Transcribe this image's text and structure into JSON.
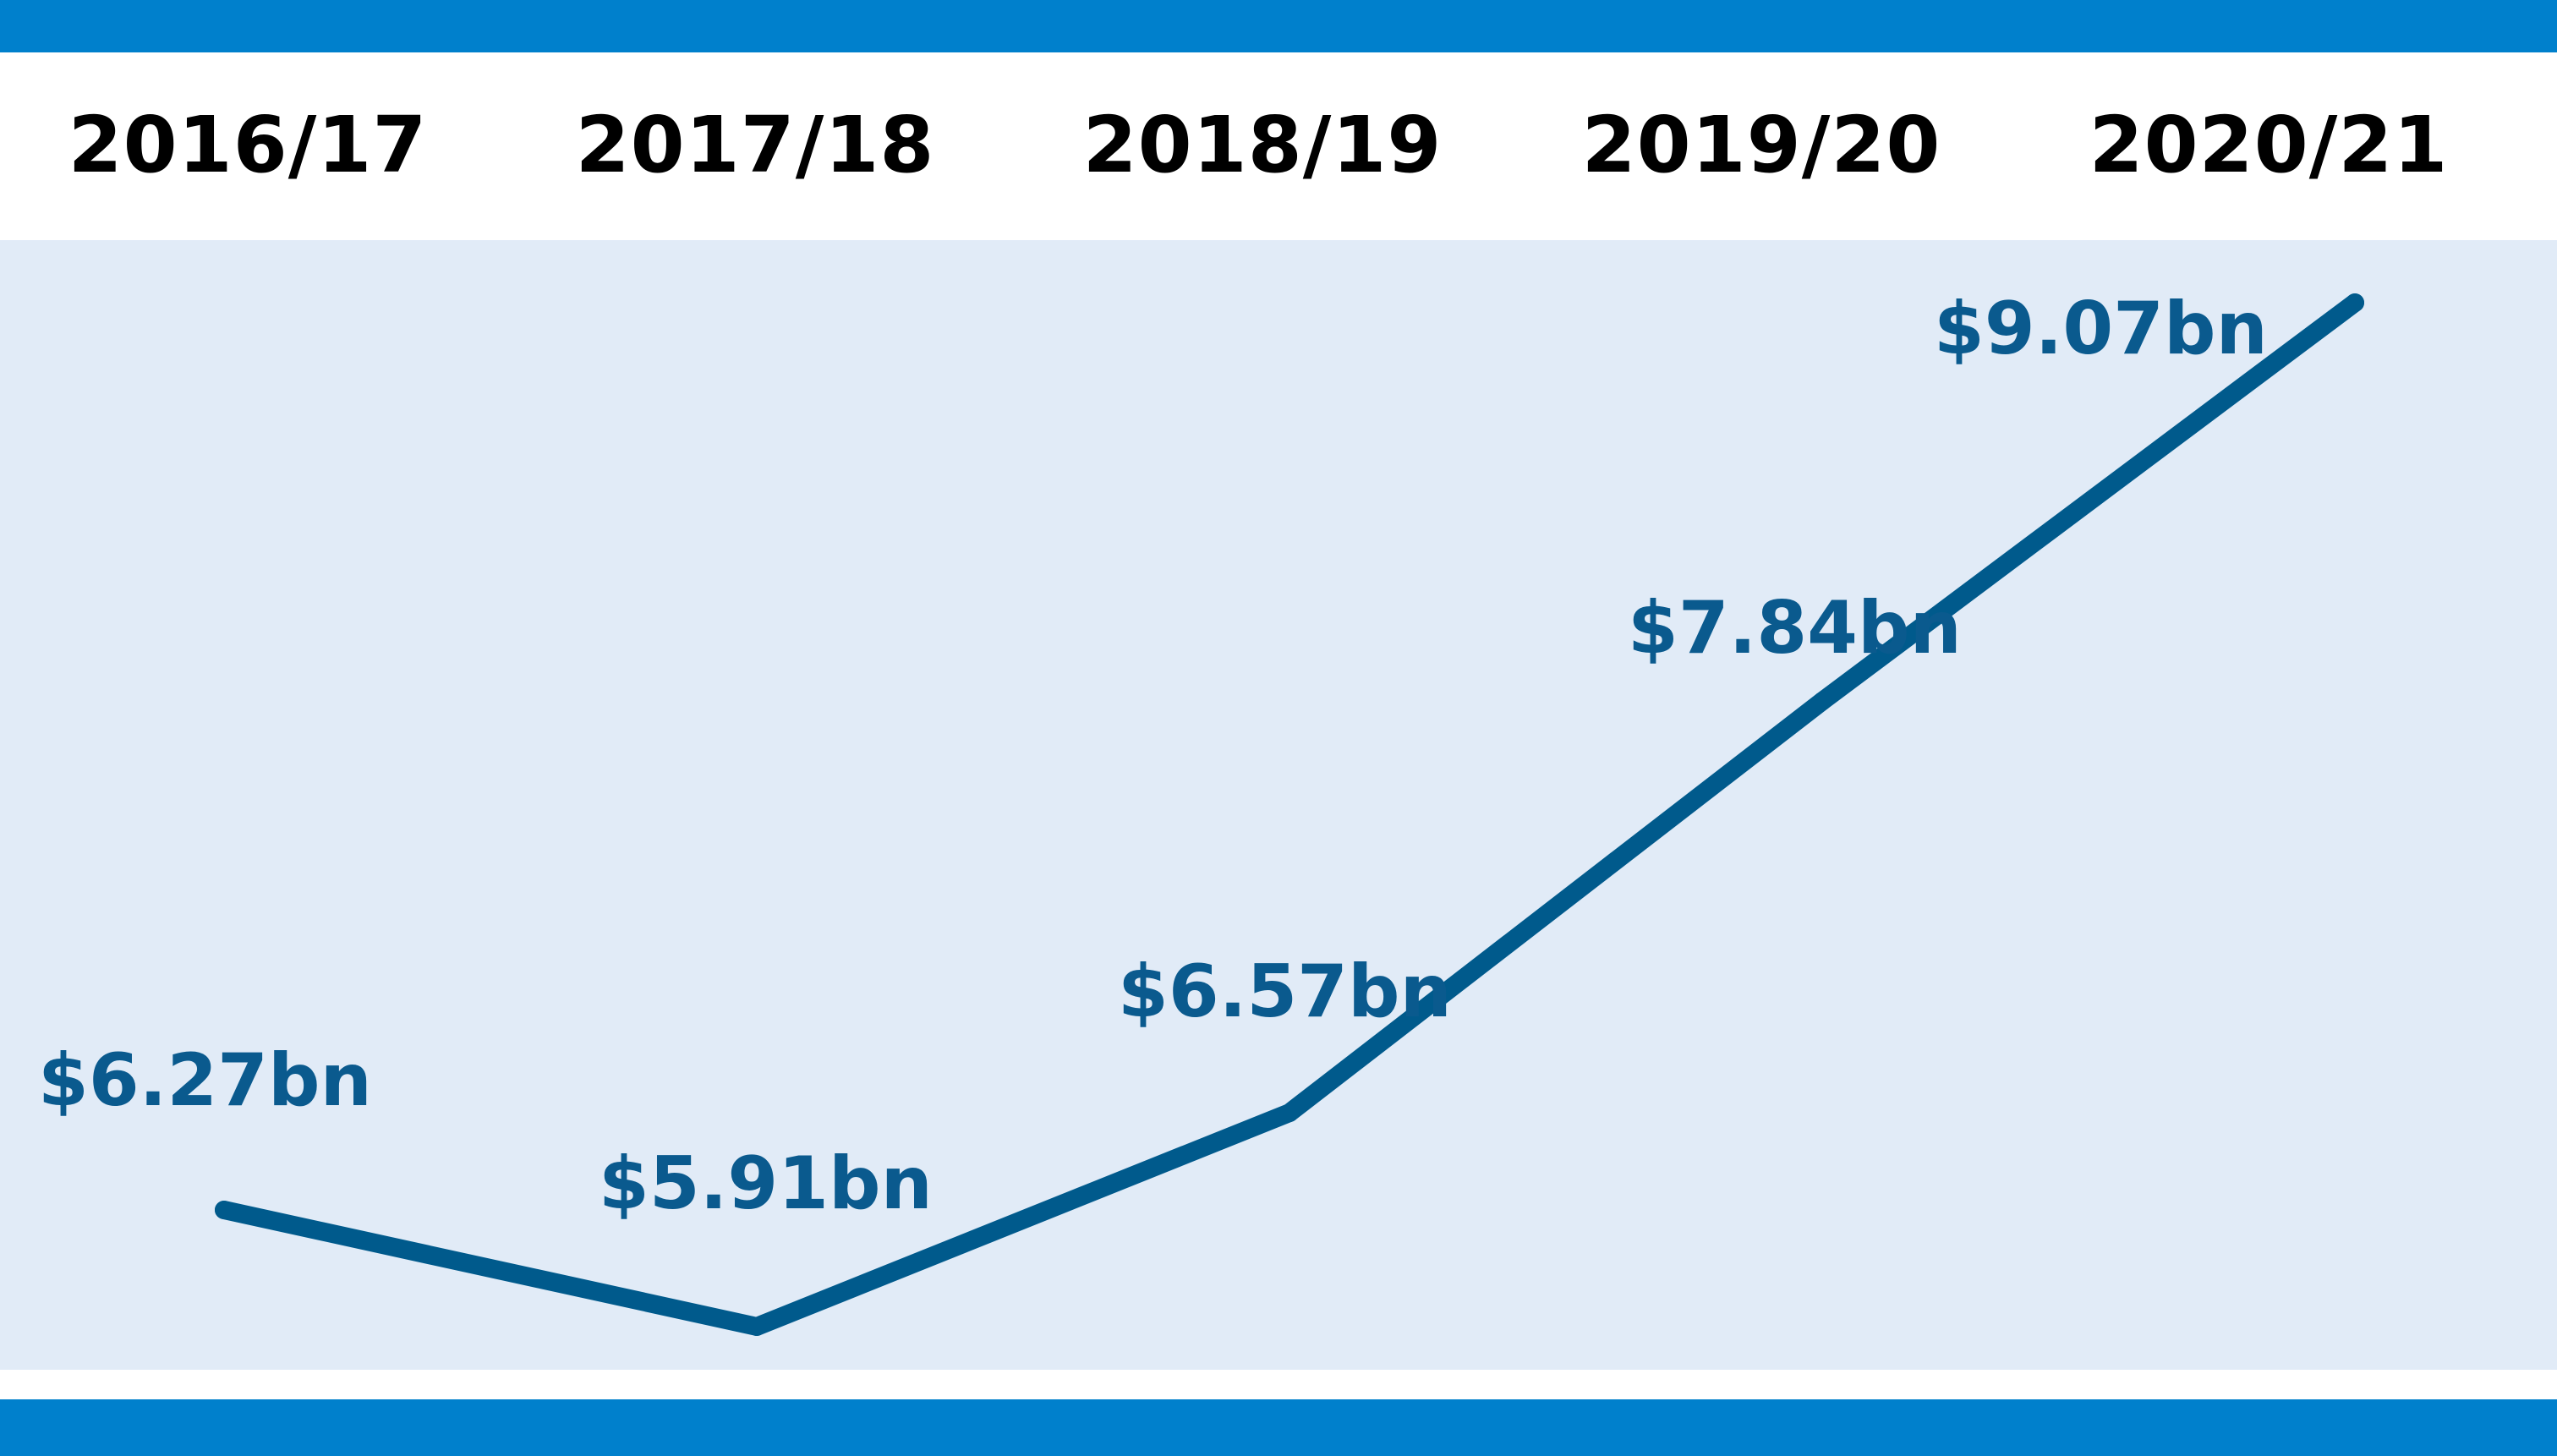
{
  "chart_data": {
    "type": "line",
    "title": "",
    "xlabel": "",
    "ylabel": "",
    "categories": [
      "2016/17",
      "2017/18",
      "2018/19",
      "2019/20",
      "2020/21"
    ],
    "values": [
      6.27,
      5.91,
      6.57,
      7.84,
      9.07
    ],
    "data_labels": [
      "$6.27bn",
      "$5.91bn",
      "$6.57bn",
      "$7.84bn",
      "$9.07bn"
    ],
    "unit": "bn",
    "ylim": [
      5.5,
      9.5
    ],
    "grid": false,
    "legend": "none",
    "colors": {
      "line": "#005a8c",
      "label": "#0a5a8e",
      "band": "#0080cc",
      "plot_background": "#e1ebf7",
      "header_text": "#000000"
    }
  }
}
